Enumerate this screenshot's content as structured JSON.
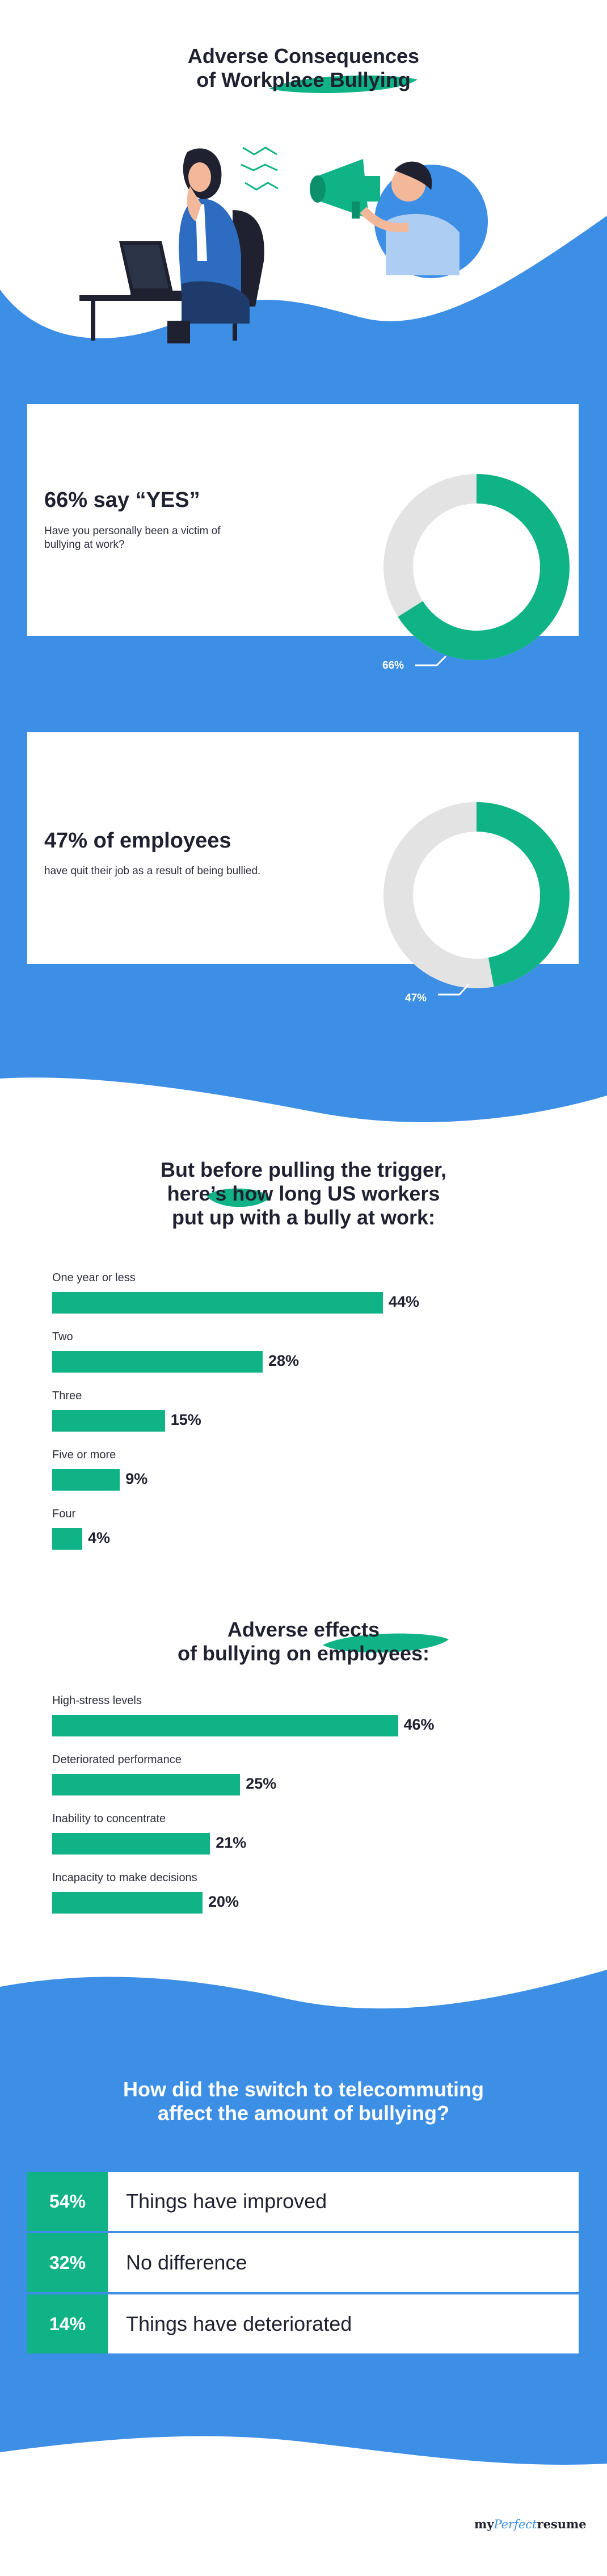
{
  "header": {
    "title_line1": "Adverse Consequences",
    "title_line2": "of Workplace Bullying"
  },
  "colors": {
    "blue": "#3d8fe6",
    "green": "#10b386",
    "grey_ring": "#e3e3e3",
    "dark": "#1f2130"
  },
  "stats": [
    {
      "title": "66% say “YES”",
      "subtitle": "Have you personally been a victim of bullying at work?",
      "label": "66%",
      "value": 66
    },
    {
      "title": "47% of employees",
      "subtitle": "have quit their job as a result of being bullied.",
      "label": "47%",
      "value": 47
    }
  ],
  "duration_section": {
    "title_line1": "But before pulling the trigger,",
    "title_line2": "here’s how long US workers",
    "title_line3": "put up with a bully at work:"
  },
  "effects_section": {
    "title_line1": "Adverse effects",
    "title_line2": "of bullying on employees:"
  },
  "chart_data": [
    {
      "type": "bar",
      "categories": [
        "One year or less",
        "Two",
        "Three",
        "Five or more",
        "Four"
      ],
      "values": [
        44,
        28,
        15,
        9,
        4
      ],
      "value_labels": [
        "44%",
        "28%",
        "15%",
        "9%",
        "4%"
      ]
    },
    {
      "type": "bar",
      "categories": [
        "High-stress levels",
        "Deteriorated performance",
        "Inability to concentrate",
        "Incapacity to make decisions"
      ],
      "values": [
        46,
        25,
        21,
        20
      ],
      "value_labels": [
        "46%",
        "25%",
        "21%",
        "20%"
      ]
    },
    {
      "type": "table",
      "rows": [
        {
          "pct": "54%",
          "text": "Things have improved"
        },
        {
          "pct": "32%",
          "text": "No difference"
        },
        {
          "pct": "14%",
          "text": "Things have deteriorated"
        }
      ]
    }
  ],
  "telecommute_section": {
    "title_line1": "How did the switch to telecommuting",
    "title_line2": "affect the amount of bullying?"
  },
  "footer": {
    "logo_my": "my",
    "logo_perfect": "Perfect",
    "logo_resume": "resume"
  }
}
